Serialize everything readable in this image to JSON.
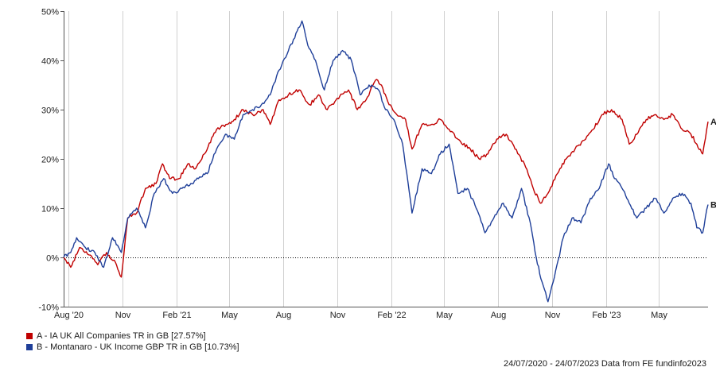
{
  "chart_data": {
    "type": "line",
    "ylim": [
      -10,
      50
    ],
    "y_ticks": [
      "-10%",
      "0%",
      "10%",
      "20%",
      "30%",
      "40%",
      "50%"
    ],
    "y_tick_values": [
      -10,
      0,
      10,
      20,
      30,
      40,
      50
    ],
    "x_ticks": [
      {
        "label": "Aug '20",
        "date": "2020-08-01"
      },
      {
        "label": "Nov",
        "date": "2020-11-01"
      },
      {
        "label": "Feb '21",
        "date": "2021-02-01"
      },
      {
        "label": "May",
        "date": "2021-05-01"
      },
      {
        "label": "Aug",
        "date": "2021-08-01"
      },
      {
        "label": "Nov",
        "date": "2021-11-01"
      },
      {
        "label": "Feb '22",
        "date": "2022-02-01"
      },
      {
        "label": "May",
        "date": "2022-05-01"
      },
      {
        "label": "Aug",
        "date": "2022-08-01"
      },
      {
        "label": "Nov",
        "date": "2022-11-01"
      },
      {
        "label": "Feb '23",
        "date": "2023-02-01"
      },
      {
        "label": "May",
        "date": "2023-05-01"
      }
    ],
    "x_range": [
      "2020-07-24",
      "2023-07-24"
    ],
    "grid": "vertical",
    "zero_line": "dotted",
    "series": [
      {
        "name": "A - IA UK All Companies TR in GB [27.57%]",
        "end_label": "A",
        "color": "#c00000",
        "points": [
          [
            "2020-07-24",
            0
          ],
          [
            "2020-08-05",
            -2
          ],
          [
            "2020-08-20",
            2
          ],
          [
            "2020-09-05",
            0.5
          ],
          [
            "2020-09-20",
            -1.5
          ],
          [
            "2020-10-05",
            1
          ],
          [
            "2020-10-20",
            -1
          ],
          [
            "2020-10-30",
            -4
          ],
          [
            "2020-11-10",
            8
          ],
          [
            "2020-11-25",
            9
          ],
          [
            "2020-12-10",
            14
          ],
          [
            "2020-12-28",
            15
          ],
          [
            "2021-01-08",
            19
          ],
          [
            "2021-01-20",
            16
          ],
          [
            "2021-02-05",
            16
          ],
          [
            "2021-02-20",
            19
          ],
          [
            "2021-03-05",
            18
          ],
          [
            "2021-03-20",
            21
          ],
          [
            "2021-04-10",
            26
          ],
          [
            "2021-04-28",
            27
          ],
          [
            "2021-05-10",
            28
          ],
          [
            "2021-05-25",
            30
          ],
          [
            "2021-06-10",
            29
          ],
          [
            "2021-06-28",
            30
          ],
          [
            "2021-07-10",
            27
          ],
          [
            "2021-07-25",
            32
          ],
          [
            "2021-08-10",
            33
          ],
          [
            "2021-08-28",
            34
          ],
          [
            "2021-09-15",
            31
          ],
          [
            "2021-09-30",
            33
          ],
          [
            "2021-10-15",
            30
          ],
          [
            "2021-10-30",
            32
          ],
          [
            "2021-11-20",
            34
          ],
          [
            "2021-12-05",
            30
          ],
          [
            "2021-12-20",
            32
          ],
          [
            "2022-01-05",
            36
          ],
          [
            "2022-01-15",
            35
          ],
          [
            "2022-01-28",
            31
          ],
          [
            "2022-02-10",
            29
          ],
          [
            "2022-02-25",
            28
          ],
          [
            "2022-03-08",
            22
          ],
          [
            "2022-03-25",
            27
          ],
          [
            "2022-04-10",
            27
          ],
          [
            "2022-04-25",
            28
          ],
          [
            "2022-05-10",
            26
          ],
          [
            "2022-05-25",
            24
          ],
          [
            "2022-06-15",
            22
          ],
          [
            "2022-06-30",
            20
          ],
          [
            "2022-07-15",
            21
          ],
          [
            "2022-07-30",
            24
          ],
          [
            "2022-08-15",
            25
          ],
          [
            "2022-08-30",
            22
          ],
          [
            "2022-09-15",
            19
          ],
          [
            "2022-09-30",
            14
          ],
          [
            "2022-10-12",
            11
          ],
          [
            "2022-10-25",
            13
          ],
          [
            "2022-11-10",
            17
          ],
          [
            "2022-11-25",
            20
          ],
          [
            "2022-12-10",
            22
          ],
          [
            "2022-12-28",
            24
          ],
          [
            "2023-01-10",
            26
          ],
          [
            "2023-01-25",
            29
          ],
          [
            "2023-02-10",
            30
          ],
          [
            "2023-02-28",
            28
          ],
          [
            "2023-03-12",
            23
          ],
          [
            "2023-03-25",
            25
          ],
          [
            "2023-04-10",
            28
          ],
          [
            "2023-04-25",
            29
          ],
          [
            "2023-05-10",
            28
          ],
          [
            "2023-05-25",
            29
          ],
          [
            "2023-06-10",
            26
          ],
          [
            "2023-06-25",
            25
          ],
          [
            "2023-07-05",
            23
          ],
          [
            "2023-07-15",
            21
          ],
          [
            "2023-07-24",
            27.57
          ]
        ]
      },
      {
        "name": "B - Montanaro - UK Income GBP TR in GB [10.73%]",
        "end_label": "B",
        "color": "#1f3f99",
        "points": [
          [
            "2020-07-24",
            0
          ],
          [
            "2020-08-05",
            1
          ],
          [
            "2020-08-15",
            4
          ],
          [
            "2020-08-30",
            2
          ],
          [
            "2020-09-15",
            1
          ],
          [
            "2020-09-30",
            -2
          ],
          [
            "2020-10-15",
            4
          ],
          [
            "2020-10-30",
            1
          ],
          [
            "2020-11-10",
            8
          ],
          [
            "2020-11-25",
            10
          ],
          [
            "2020-12-10",
            6
          ],
          [
            "2020-12-25",
            13
          ],
          [
            "2021-01-10",
            16
          ],
          [
            "2021-01-25",
            13
          ],
          [
            "2021-02-10",
            14
          ],
          [
            "2021-02-25",
            15
          ],
          [
            "2021-03-10",
            16
          ],
          [
            "2021-03-25",
            17
          ],
          [
            "2021-04-10",
            22
          ],
          [
            "2021-04-25",
            25
          ],
          [
            "2021-05-10",
            24
          ],
          [
            "2021-05-25",
            29
          ],
          [
            "2021-06-10",
            30
          ],
          [
            "2021-06-25",
            31
          ],
          [
            "2021-07-10",
            33
          ],
          [
            "2021-07-25",
            38
          ],
          [
            "2021-08-10",
            42
          ],
          [
            "2021-08-25",
            46
          ],
          [
            "2021-09-02",
            48
          ],
          [
            "2021-09-12",
            43
          ],
          [
            "2021-09-25",
            40
          ],
          [
            "2021-10-10",
            34
          ],
          [
            "2021-10-25",
            40
          ],
          [
            "2021-11-10",
            42
          ],
          [
            "2021-11-25",
            40
          ],
          [
            "2021-12-10",
            33
          ],
          [
            "2021-12-25",
            35
          ],
          [
            "2022-01-10",
            34
          ],
          [
            "2022-01-22",
            30
          ],
          [
            "2022-02-05",
            28
          ],
          [
            "2022-02-20",
            23
          ],
          [
            "2022-03-08",
            9
          ],
          [
            "2022-03-25",
            18
          ],
          [
            "2022-04-10",
            17
          ],
          [
            "2022-04-25",
            21
          ],
          [
            "2022-05-10",
            23
          ],
          [
            "2022-05-25",
            13
          ],
          [
            "2022-06-10",
            14
          ],
          [
            "2022-06-25",
            10
          ],
          [
            "2022-07-10",
            5
          ],
          [
            "2022-07-25",
            8
          ],
          [
            "2022-08-10",
            11
          ],
          [
            "2022-08-25",
            8
          ],
          [
            "2022-09-10",
            14
          ],
          [
            "2022-09-25",
            7
          ],
          [
            "2022-10-05",
            0
          ],
          [
            "2022-10-15",
            -5
          ],
          [
            "2022-10-25",
            -9
          ],
          [
            "2022-11-05",
            -4
          ],
          [
            "2022-11-20",
            4
          ],
          [
            "2022-12-05",
            8
          ],
          [
            "2022-12-20",
            7
          ],
          [
            "2023-01-05",
            12
          ],
          [
            "2023-01-20",
            14
          ],
          [
            "2023-02-05",
            19
          ],
          [
            "2023-02-15",
            16
          ],
          [
            "2023-02-28",
            14
          ],
          [
            "2023-03-12",
            11
          ],
          [
            "2023-03-25",
            8
          ],
          [
            "2023-04-10",
            10
          ],
          [
            "2023-04-25",
            12
          ],
          [
            "2023-05-10",
            9
          ],
          [
            "2023-05-25",
            12
          ],
          [
            "2023-06-10",
            13
          ],
          [
            "2023-06-25",
            11
          ],
          [
            "2023-07-05",
            6
          ],
          [
            "2023-07-15",
            5
          ],
          [
            "2023-07-24",
            10.73
          ]
        ]
      }
    ]
  },
  "legend": [
    {
      "label": "A - IA UK All Companies TR in GB [27.57%]",
      "color": "#c00000"
    },
    {
      "label": "B - Montanaro - UK Income GBP TR in GB [10.73%]",
      "color": "#1f3f99"
    }
  ],
  "footer": "24/07/2020 - 24/07/2023 Data from FE fundinfo2023"
}
